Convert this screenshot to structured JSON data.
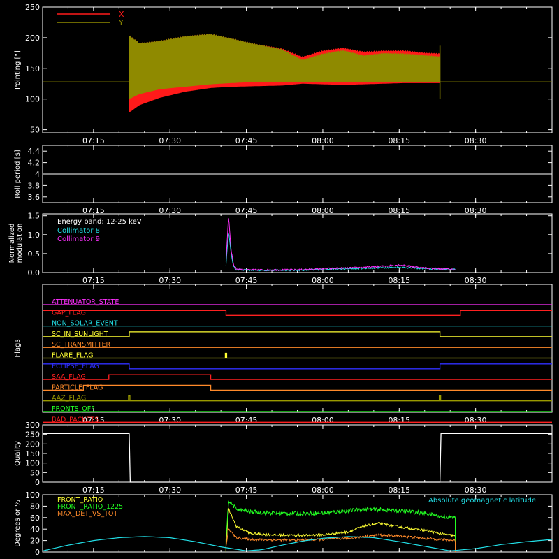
{
  "colors": {
    "background": "#000000",
    "axes": "#ffffff",
    "red": "#ff1a1a",
    "olive": "#8f8a00",
    "white": "#ffffff",
    "cyan": "#22e0e8",
    "magenta": "#ff30ff",
    "yellow": "#ffff33",
    "green": "#22ff22",
    "orange": "#ff8a2a",
    "blue": "#3030ff",
    "bright_red": "#ff2020",
    "olive_flag": "#9a9a00"
  },
  "time_axis": {
    "start": "07:05",
    "end": "08:45",
    "ticks": [
      "07:15",
      "07:30",
      "07:45",
      "08:00",
      "08:15",
      "08:30"
    ]
  },
  "chart_data": [
    {
      "type": "area",
      "id": "pointing",
      "ylabel": "Pointing [\"]",
      "ylim": [
        45,
        250
      ],
      "yticks": [
        50,
        100,
        150,
        200,
        250
      ],
      "legend": [
        {
          "name": "X",
          "color": "#ff1a1a"
        },
        {
          "name": "Y",
          "color": "#8f8a00"
        }
      ],
      "baseline": 128,
      "data_window": [
        "07:22",
        "08:23"
      ],
      "series": [
        {
          "name": "X",
          "color": "#ff1a1a",
          "envelope_x": [
            "07:22",
            "07:24",
            "07:28",
            "07:33",
            "07:38",
            "07:42",
            "07:47",
            "07:52",
            "07:56",
            "08:00",
            "08:04",
            "08:08",
            "08:12",
            "08:16",
            "08:20",
            "08:23"
          ],
          "upper": [
            205,
            192,
            196,
            203,
            207,
            200,
            190,
            183,
            170,
            180,
            184,
            178,
            180,
            180,
            176,
            175
          ],
          "lower": [
            78,
            90,
            102,
            112,
            118,
            120,
            121,
            122,
            125,
            124,
            123,
            124,
            125,
            126,
            126,
            126
          ]
        },
        {
          "name": "Y",
          "color": "#8f8a00",
          "envelope_x": [
            "07:22",
            "07:24",
            "07:28",
            "07:33",
            "07:38",
            "07:42",
            "07:47",
            "07:52",
            "07:56",
            "08:00",
            "08:04",
            "08:08",
            "08:12",
            "08:16",
            "08:20",
            "08:23"
          ],
          "upper": [
            205,
            192,
            196,
            203,
            207,
            200,
            190,
            182,
            165,
            175,
            180,
            172,
            176,
            175,
            172,
            170
          ],
          "lower": [
            100,
            108,
            116,
            120,
            124,
            126,
            128,
            128,
            128,
            128,
            128,
            128,
            128,
            128,
            128,
            128
          ]
        }
      ]
    },
    {
      "type": "line",
      "id": "roll_period",
      "ylabel": "Roll period [s]",
      "ylim": [
        3.5,
        4.5
      ],
      "yticks": [
        3.6,
        3.8,
        4.0,
        4.2,
        4.4
      ],
      "series": [
        {
          "name": "roll",
          "color": "#ffffff",
          "x": [
            "07:05",
            "08:45"
          ],
          "values": [
            4.0,
            4.0
          ]
        }
      ]
    },
    {
      "type": "line",
      "id": "modulation",
      "ylabel": "Normalized\nmodulation",
      "ylim": [
        0,
        1.55
      ],
      "yticks": [
        0.0,
        0.5,
        1.0,
        1.5
      ],
      "yticklabels": [
        "0.0",
        "0.5",
        "1.0",
        "1.5"
      ],
      "annotation": "Energy band: 12-25 keV",
      "legend": [
        {
          "name": "Collimator 8",
          "color": "#22e0e8"
        },
        {
          "name": "Collimator 9",
          "color": "#ff30ff"
        }
      ],
      "series": [
        {
          "name": "Collimator 8",
          "color": "#22e0e8",
          "x": [
            "07:41",
            "07:41.5",
            "07:42",
            "07:42.5",
            "07:43",
            "07:45",
            "07:50",
            "07:55",
            "08:00",
            "08:05",
            "08:10",
            "08:15",
            "08:20",
            "08:26"
          ],
          "values": [
            0.2,
            1.1,
            0.5,
            0.15,
            0.08,
            0.06,
            0.06,
            0.06,
            0.08,
            0.1,
            0.12,
            0.14,
            0.1,
            0.08
          ]
        },
        {
          "name": "Collimator 9",
          "color": "#ff30ff",
          "x": [
            "07:41",
            "07:41.5",
            "07:42",
            "07:42.5",
            "07:43",
            "07:45",
            "07:50",
            "07:55",
            "08:00",
            "08:05",
            "08:10",
            "08:15",
            "08:20",
            "08:26"
          ],
          "values": [
            0.3,
            1.5,
            0.6,
            0.2,
            0.1,
            0.07,
            0.07,
            0.07,
            0.1,
            0.12,
            0.15,
            0.2,
            0.12,
            0.08
          ]
        }
      ]
    },
    {
      "type": "line",
      "id": "flags",
      "ylabel": "Flags",
      "flags": [
        {
          "name": "ATTENUATOR_STATE",
          "color": "#ff30ff",
          "segments": []
        },
        {
          "name": "GAP_FLAG",
          "color": "#ff2020",
          "segments": [
            [
              "07:41",
              "08:27"
            ]
          ],
          "inverted": true
        },
        {
          "name": "NON_SOLAR_EVENT",
          "color": "#22e0e8",
          "segments": []
        },
        {
          "name": "SC_IN_SUNLIGHT",
          "color": "#ffff33",
          "segments": [
            [
              "07:22",
              "08:23"
            ]
          ]
        },
        {
          "name": "SC_TRANSMITTER",
          "color": "#ff8a2a",
          "segments": []
        },
        {
          "name": "FLARE_FLAG",
          "color": "#ffff33",
          "segments": [],
          "spikes": [
            "07:41"
          ]
        },
        {
          "name": "ECLIPSE_FLAG",
          "color": "#3030ff",
          "segments": [
            [
              "07:22",
              "08:23"
            ]
          ],
          "inverted": true
        },
        {
          "name": "SAA_FLAG",
          "color": "#ff2020",
          "segments": [
            [
              "07:18",
              "07:38"
            ]
          ]
        },
        {
          "name": "PARTICLE_FLAG",
          "color": "#ff8a2a",
          "segments": [
            [
              "07:13",
              "07:38"
            ]
          ]
        },
        {
          "name": "AAZ_FLAG",
          "color": "#9a9a00",
          "segments": [],
          "spikes": [
            "07:22",
            "08:23"
          ]
        },
        {
          "name": "FRONTS_OFF",
          "color": "#22ff22",
          "segments": []
        },
        {
          "name": "BAD_PACKETS",
          "color": "#ff2020",
          "segments": []
        }
      ]
    },
    {
      "type": "line",
      "id": "quality",
      "ylabel": "Quality",
      "ylim": [
        0,
        300
      ],
      "yticks": [
        0,
        50,
        100,
        150,
        200,
        250,
        300
      ],
      "series": [
        {
          "name": "quality",
          "color": "#ffffff",
          "x": [
            "07:05",
            "07:22",
            "07:22.2",
            "08:23",
            "08:23.2",
            "08:45"
          ],
          "values": [
            255,
            255,
            0,
            0,
            255,
            255
          ]
        }
      ]
    },
    {
      "type": "line",
      "id": "front_ratio",
      "ylabel": "Degrees or %",
      "ylim": [
        0,
        100
      ],
      "yticks": [
        0,
        20,
        40,
        60,
        80,
        100
      ],
      "legend": [
        {
          "name": "FRONT_RATIO",
          "color": "#ffff33"
        },
        {
          "name": "FRONT_RATIO_1225",
          "color": "#22ff22"
        },
        {
          "name": "MAX_DET_VS_TOT",
          "color": "#ff8a2a"
        }
      ],
      "right_legend": {
        "name": "Absolute geomagnetic latitude",
        "color": "#22e0e8"
      },
      "series": [
        {
          "name": "FRONT_RATIO",
          "color": "#ffff33",
          "x": [
            "07:41",
            "07:41.5",
            "07:43",
            "07:46",
            "07:50",
            "07:55",
            "08:00",
            "08:05",
            "08:08",
            "08:11",
            "08:15",
            "08:20",
            "08:23",
            "08:26"
          ],
          "values": [
            10,
            75,
            45,
            32,
            30,
            29,
            30,
            35,
            45,
            50,
            44,
            38,
            32,
            28
          ]
        },
        {
          "name": "FRONT_RATIO_1225",
          "color": "#22ff22",
          "x": [
            "07:41",
            "07:41.5",
            "07:43",
            "07:46",
            "07:50",
            "07:55",
            "08:00",
            "08:05",
            "08:08",
            "08:11",
            "08:15",
            "08:20",
            "08:23",
            "08:26"
          ],
          "values": [
            20,
            90,
            75,
            70,
            68,
            67,
            68,
            72,
            75,
            74,
            72,
            68,
            62,
            60
          ]
        },
        {
          "name": "MAX_DET_VS_TOT",
          "color": "#ff8a2a",
          "x": [
            "07:41",
            "07:41.5",
            "07:43",
            "07:46",
            "07:50",
            "07:55",
            "08:00",
            "08:05",
            "08:08",
            "08:11",
            "08:15",
            "08:20",
            "08:23",
            "08:26"
          ],
          "values": [
            10,
            40,
            25,
            22,
            21,
            21,
            22,
            24,
            27,
            30,
            28,
            24,
            22,
            20
          ]
        },
        {
          "name": "Absolute geomagnetic latitude",
          "color": "#22e0e8",
          "x": [
            "07:05",
            "07:10",
            "07:15",
            "07:20",
            "07:25",
            "07:30",
            "07:35",
            "07:40",
            "07:45",
            "07:48",
            "07:52",
            "07:56",
            "08:00",
            "08:05",
            "08:10",
            "08:15",
            "08:20",
            "08:25",
            "08:30",
            "08:35",
            "08:40",
            "08:45"
          ],
          "values": [
            2,
            12,
            20,
            25,
            27,
            25,
            18,
            9,
            2,
            4,
            12,
            19,
            24,
            27,
            25,
            18,
            10,
            2,
            6,
            13,
            18,
            22
          ]
        }
      ]
    }
  ]
}
